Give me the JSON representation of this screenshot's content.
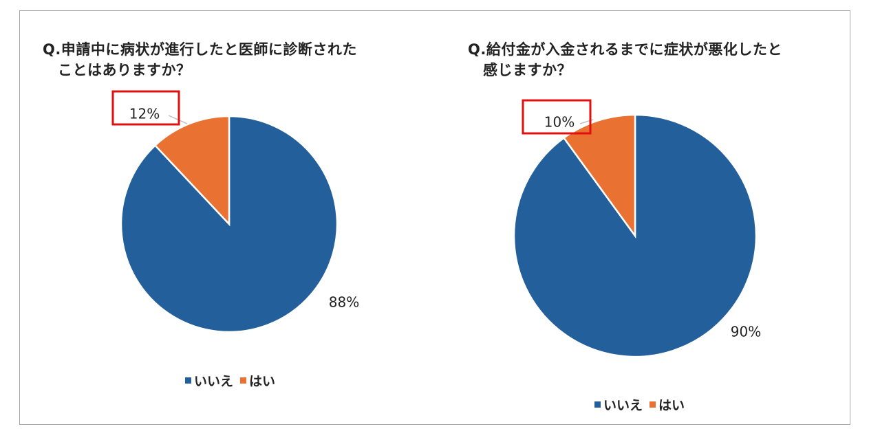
{
  "colors": {
    "no": "#235f9b",
    "yes": "#e97132",
    "highlight": "#e01010",
    "frame": "#a6a6a6"
  },
  "chart_data": [
    {
      "type": "pie",
      "title_line1": "Q.申請中に病状が進行したと医師に診断された",
      "title_line2": "ことはありますか？",
      "categories": [
        "いいえ",
        "はい"
      ],
      "values": [
        88,
        12
      ],
      "labels": [
        "88%",
        "12%"
      ],
      "legend": [
        "いいえ",
        "はい"
      ],
      "legend_position": "bottom",
      "highlighted": "はい"
    },
    {
      "type": "pie",
      "title_line1": "Q.給付金が入金されるまでに症状が悪化したと",
      "title_line2": "感じますか？",
      "categories": [
        "いいえ",
        "はい"
      ],
      "values": [
        90,
        10
      ],
      "labels": [
        "90%",
        "10%"
      ],
      "legend": [
        "いいえ",
        "はい"
      ],
      "legend_position": "bottom",
      "highlighted": "はい"
    }
  ]
}
